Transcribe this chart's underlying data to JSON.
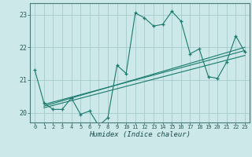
{
  "title": "",
  "xlabel": "Humidex (Indice chaleur)",
  "ylabel": "",
  "bg_color": "#cce8e8",
  "grid_color": "#aacfcf",
  "line_color": "#1a7a6e",
  "xlim": [
    -0.5,
    23.5
  ],
  "ylim": [
    19.7,
    23.35
  ],
  "yticks": [
    20,
    21,
    22,
    23
  ],
  "xticks": [
    0,
    1,
    2,
    3,
    4,
    5,
    6,
    7,
    8,
    9,
    10,
    11,
    12,
    13,
    14,
    15,
    16,
    17,
    18,
    19,
    20,
    21,
    22,
    23
  ],
  "main_x": [
    0,
    1,
    2,
    3,
    4,
    5,
    6,
    7,
    8,
    9,
    10,
    11,
    12,
    13,
    14,
    15,
    16,
    17,
    18,
    19,
    20,
    21,
    22,
    23
  ],
  "main_y": [
    21.3,
    20.3,
    20.1,
    20.1,
    20.45,
    19.95,
    20.05,
    19.6,
    19.85,
    21.45,
    21.2,
    23.05,
    22.9,
    22.65,
    22.7,
    23.1,
    22.8,
    21.8,
    21.95,
    21.1,
    21.05,
    21.55,
    22.35,
    21.85
  ],
  "line1_x": [
    1,
    23
  ],
  "line1_y": [
    20.25,
    21.9
  ],
  "line2_x": [
    1,
    23
  ],
  "line2_y": [
    20.2,
    22.0
  ],
  "line3_x": [
    1,
    23
  ],
  "line3_y": [
    20.15,
    21.75
  ]
}
